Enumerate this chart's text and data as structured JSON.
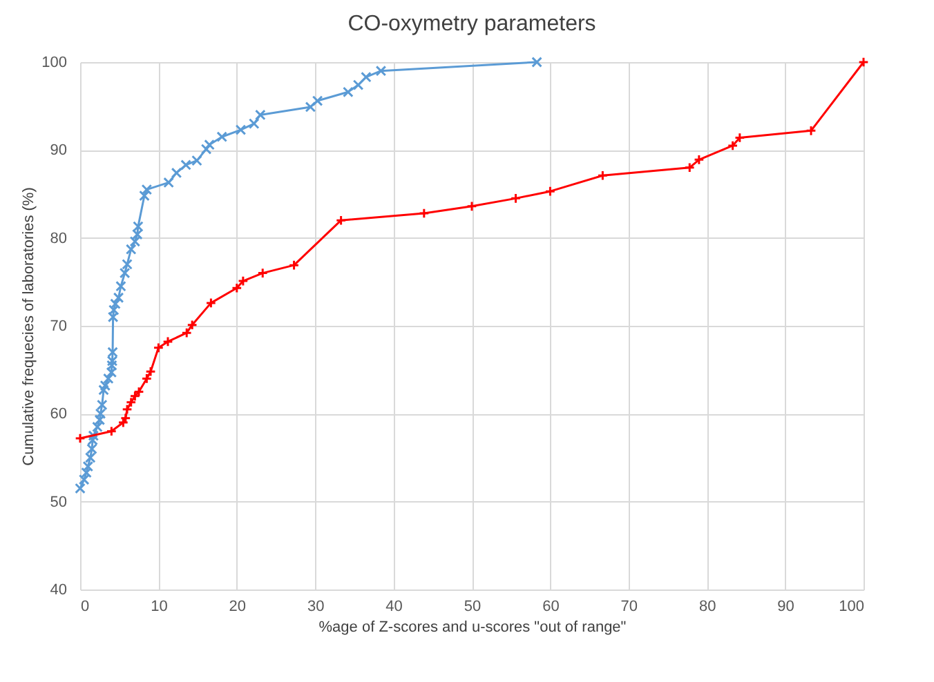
{
  "chart_data": {
    "type": "line",
    "title": "CO-oxymetry parameters",
    "xlabel": "%age of Z-scores and u-scores \"out of range\"",
    "ylabel": "Cumulative frequecies of laboratories (%)",
    "xlim": [
      0,
      100
    ],
    "xticks": [
      0,
      10,
      20,
      30,
      40,
      50,
      60,
      70,
      80,
      90,
      100
    ],
    "ylim": [
      40,
      100
    ],
    "yticks": [
      40,
      50,
      60,
      70,
      80,
      90,
      100
    ],
    "grid": true,
    "line_style": "solid",
    "series": [
      {
        "color": "#5b9bd5",
        "marker": "cross",
        "x": [
          0,
          0.5,
          0.8,
          1,
          1.3,
          1.5,
          1.6,
          1.7,
          2.2,
          2.5,
          2.6,
          2.8,
          3,
          3.2,
          3.6,
          4,
          4.05,
          4.1,
          4.15,
          4.2,
          4.3,
          4.5,
          4.9,
          5.2,
          5.7,
          6,
          6.5,
          7,
          7.3,
          7.4,
          8.2,
          8.5,
          11.3,
          12.3,
          13.5,
          14.9,
          16.1,
          16.5,
          18.1,
          20.5,
          22.2,
          23,
          29.4,
          30.3,
          34.2,
          35.5,
          36.5,
          38.4,
          58.3
        ],
        "values": [
          51.5,
          52.5,
          53.3,
          54,
          55,
          56,
          57,
          57.5,
          58.5,
          59.3,
          60,
          61,
          62.7,
          63.2,
          64,
          64.7,
          65.5,
          66,
          67,
          71,
          71.8,
          72.5,
          73.2,
          74.5,
          76,
          77,
          78.7,
          79.6,
          80.4,
          81.3,
          84.8,
          85.5,
          86.3,
          87.4,
          88.3,
          88.8,
          90.1,
          90.6,
          91.5,
          92.3,
          93,
          94,
          94.9,
          95.6,
          96.6,
          97.4,
          98.3,
          99,
          100
        ]
      },
      {
        "color": "#ff0000",
        "marker": "plus",
        "x": [
          0,
          4,
          5.5,
          5.8,
          6,
          6.5,
          7,
          7.5,
          8.5,
          9,
          10,
          11.2,
          13.6,
          14.3,
          16.7,
          20,
          20.8,
          23.3,
          27.3,
          33.3,
          43.9,
          50,
          55.6,
          60,
          66.7,
          77.8,
          79,
          83.3,
          84.2,
          93.3,
          100
        ],
        "values": [
          57.2,
          58,
          59,
          59.5,
          60.5,
          61.3,
          62,
          62.5,
          64,
          64.8,
          67.5,
          68.2,
          69.2,
          70.1,
          72.6,
          74.3,
          75.1,
          76,
          76.9,
          82,
          82.8,
          83.6,
          84.5,
          85.3,
          87.1,
          88,
          88.9,
          90.5,
          91.4,
          92.2,
          100
        ]
      }
    ]
  }
}
